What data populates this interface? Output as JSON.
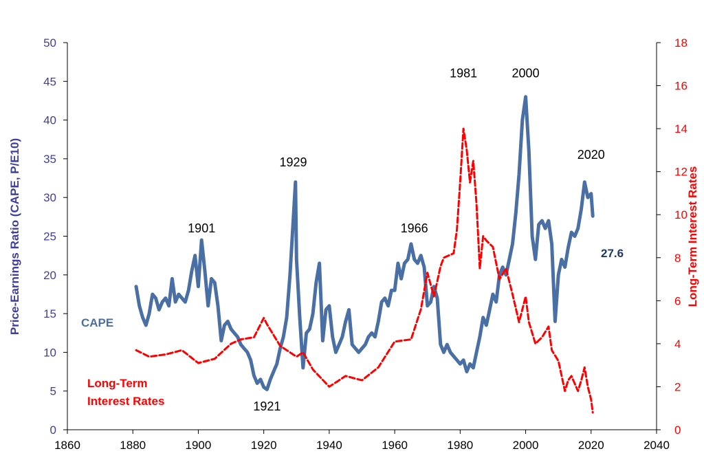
{
  "chart_data": {
    "type": "line",
    "ylabel_left": "Price-Earnings Ratio (CAPE, P/E10)",
    "ylabel_right": "Long-Term Interest Rates",
    "xlim": [
      1860,
      2040
    ],
    "ylim_left": [
      0,
      50
    ],
    "ylim_right": [
      0,
      18
    ],
    "x_ticks": [
      "1860",
      "1880",
      "1900",
      "1920",
      "1940",
      "1960",
      "1980",
      "2000",
      "2020",
      "2040"
    ],
    "y_left_ticks": [
      "0",
      "5",
      "10",
      "15",
      "20",
      "25",
      "30",
      "35",
      "40",
      "45",
      "50"
    ],
    "y_right_ticks": [
      "0",
      "2",
      "4",
      "6",
      "8",
      "10",
      "12",
      "14",
      "16",
      "18"
    ],
    "grid": false,
    "series": [
      {
        "name": "CAPE",
        "axis": "left",
        "color": "#4a6fa5",
        "style": "solid",
        "x": [
          1881,
          1882,
          1883,
          1884,
          1885,
          1886,
          1887,
          1888,
          1889,
          1890,
          1891,
          1892,
          1893,
          1894,
          1895,
          1896,
          1897,
          1898,
          1899,
          1900,
          1901,
          1902,
          1903,
          1904,
          1905,
          1906,
          1907,
          1908,
          1909,
          1910,
          1911,
          1912,
          1913,
          1914,
          1915,
          1916,
          1917,
          1918,
          1919,
          1920,
          1921,
          1922,
          1923,
          1924,
          1925,
          1926,
          1927,
          1928,
          1929,
          1929.7,
          1930,
          1931,
          1932,
          1933,
          1934,
          1935,
          1936,
          1937,
          1938,
          1939,
          1940,
          1941,
          1942,
          1943,
          1944,
          1945,
          1946,
          1947,
          1948,
          1949,
          1950,
          1951,
          1952,
          1953,
          1954,
          1955,
          1956,
          1957,
          1958,
          1959,
          1960,
          1961,
          1962,
          1963,
          1964,
          1965,
          1966,
          1967,
          1968,
          1969,
          1970,
          1971,
          1972,
          1973,
          1974,
          1975,
          1976,
          1977,
          1978,
          1979,
          1980,
          1981,
          1982,
          1983,
          1984,
          1985,
          1986,
          1987,
          1988,
          1989,
          1990,
          1991,
          1992,
          1993,
          1994,
          1995,
          1996,
          1997,
          1998,
          1999,
          2000,
          2001,
          2002,
          2003,
          2004,
          2005,
          2006,
          2007,
          2008,
          2009,
          2010,
          2011,
          2012,
          2013,
          2014,
          2015,
          2016,
          2017,
          2018,
          2019,
          2020,
          2020.5
        ],
        "y": [
          18.5,
          16.0,
          14.5,
          13.5,
          15.0,
          17.5,
          17.0,
          15.5,
          16.5,
          17.0,
          16.0,
          19.5,
          16.5,
          17.5,
          17.0,
          16.5,
          18.0,
          20.5,
          22.5,
          18.5,
          24.5,
          20.5,
          16.0,
          19.5,
          19.0,
          16.0,
          11.5,
          13.5,
          14.0,
          13.0,
          12.5,
          12.0,
          11.0,
          10.5,
          10.0,
          9.0,
          7.0,
          6.0,
          6.5,
          5.5,
          5.2,
          6.5,
          7.5,
          8.5,
          10.5,
          12.0,
          14.5,
          20.0,
          27.0,
          32.0,
          22.0,
          14.5,
          8.0,
          12.5,
          13.0,
          15.0,
          19.0,
          21.5,
          11.5,
          15.5,
          16.0,
          12.0,
          10.0,
          11.0,
          12.0,
          14.0,
          15.5,
          11.0,
          10.5,
          10.0,
          10.5,
          11.0,
          12.0,
          12.5,
          12.0,
          14.0,
          16.5,
          17.0,
          16.0,
          18.0,
          18.0,
          21.5,
          19.5,
          21.5,
          22.0,
          24.0,
          22.0,
          21.5,
          22.5,
          21.0,
          16.0,
          16.5,
          18.5,
          17.0,
          11.0,
          10.0,
          11.0,
          10.0,
          9.5,
          9.0,
          8.5,
          9.0,
          7.5,
          8.5,
          8.0,
          10.0,
          12.0,
          14.5,
          13.5,
          15.5,
          17.5,
          16.5,
          20.0,
          21.0,
          20.0,
          22.0,
          24.0,
          28.0,
          33.0,
          40.0,
          43.0,
          36.0,
          25.0,
          22.0,
          26.5,
          27.0,
          26.0,
          27.0,
          24.0,
          14.0,
          20.0,
          22.0,
          21.0,
          23.5,
          25.5,
          25.0,
          26.0,
          28.5,
          32.0,
          30.0,
          30.5,
          27.6
        ]
      },
      {
        "name": "Long-Term Interest Rates",
        "axis": "right",
        "color": "#ff0000",
        "style": "dashed",
        "x": [
          1881,
          1885,
          1890,
          1895,
          1900,
          1905,
          1910,
          1913,
          1917,
          1920,
          1921,
          1925,
          1930,
          1932,
          1935,
          1940,
          1945,
          1950,
          1955,
          1960,
          1965,
          1968,
          1970,
          1972,
          1974,
          1975,
          1978,
          1979,
          1980,
          1981,
          1982,
          1983,
          1984,
          1985,
          1986,
          1987,
          1988,
          1990,
          1992,
          1994,
          1996,
          1998,
          2000,
          2001,
          2002,
          2003,
          2005,
          2007,
          2008,
          2010,
          2012,
          2013,
          2014,
          2016,
          2017,
          2018,
          2019,
          2020,
          2020.5
        ],
        "y": [
          3.7,
          3.4,
          3.5,
          3.7,
          3.1,
          3.3,
          4.0,
          4.2,
          4.3,
          5.2,
          4.9,
          3.9,
          3.4,
          3.6,
          2.8,
          2.0,
          2.5,
          2.3,
          2.9,
          4.1,
          4.2,
          5.6,
          7.3,
          6.2,
          7.6,
          8.0,
          8.2,
          9.3,
          11.5,
          14.0,
          13.0,
          11.5,
          12.5,
          10.5,
          7.5,
          9.0,
          8.8,
          8.5,
          7.0,
          7.5,
          6.3,
          5.0,
          6.2,
          5.0,
          4.5,
          4.0,
          4.3,
          4.8,
          3.7,
          3.2,
          1.8,
          2.3,
          2.5,
          1.8,
          2.3,
          2.9,
          2.0,
          1.4,
          0.8
        ]
      }
    ],
    "annotations": [
      {
        "text": "1901",
        "x": 1901,
        "y": 25.5
      },
      {
        "text": "1921",
        "x": 1921,
        "y": 2.5
      },
      {
        "text": "1929",
        "x": 1929,
        "y": 34.0
      },
      {
        "text": "1966",
        "x": 1966,
        "y": 25.5
      },
      {
        "text": "1981",
        "x": 1981,
        "y": 45.5
      },
      {
        "text": "2000",
        "x": 2000,
        "y": 45.5
      },
      {
        "text": "2020",
        "x": 2020,
        "y": 35.0
      }
    ],
    "series_labels": {
      "cape": "CAPE",
      "rates_line1": "Long-Term",
      "rates_line2": "Interest Rates",
      "current_value": "27.6"
    }
  }
}
